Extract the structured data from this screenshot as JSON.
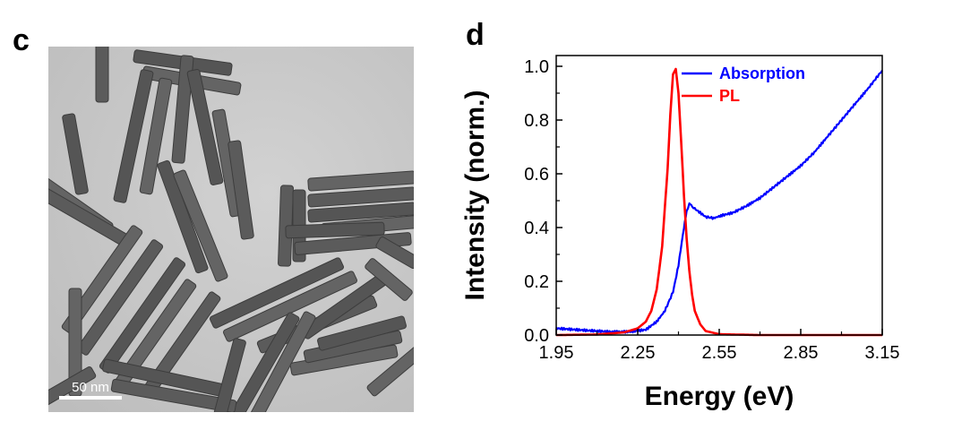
{
  "panels": {
    "left_letter": "c",
    "right_letter": "d"
  },
  "tem": {
    "scale_bar_label": "50 nm"
  },
  "chart_data": {
    "type": "line",
    "xlabel": "Energy (eV)",
    "ylabel": "Intensity (norm.)",
    "xlim": [
      1.95,
      3.15
    ],
    "ylim": [
      0.0,
      1.04
    ],
    "xticks": [
      "1.95",
      "2.25",
      "2.55",
      "2.85",
      "3.15"
    ],
    "yticks": [
      "0.0",
      "0.2",
      "0.4",
      "0.6",
      "0.8",
      "1.0"
    ],
    "legend_position": "top-right",
    "series": [
      {
        "name": "Absorption",
        "color": "#0000ff",
        "x": [
          1.95,
          2.05,
          2.15,
          2.22,
          2.28,
          2.32,
          2.35,
          2.38,
          2.4,
          2.42,
          2.43,
          2.44,
          2.45,
          2.46,
          2.48,
          2.5,
          2.53,
          2.56,
          2.6,
          2.65,
          2.7,
          2.75,
          2.8,
          2.85,
          2.9,
          2.95,
          3.0,
          3.05,
          3.1,
          3.15
        ],
        "y": [
          0.025,
          0.018,
          0.012,
          0.012,
          0.02,
          0.05,
          0.09,
          0.16,
          0.26,
          0.4,
          0.46,
          0.49,
          0.48,
          0.47,
          0.455,
          0.44,
          0.435,
          0.445,
          0.455,
          0.48,
          0.51,
          0.55,
          0.59,
          0.63,
          0.68,
          0.74,
          0.8,
          0.86,
          0.92,
          0.985
        ]
      },
      {
        "name": "PL",
        "color": "#ff0000",
        "x": [
          1.95,
          2.1,
          2.2,
          2.25,
          2.28,
          2.3,
          2.32,
          2.34,
          2.36,
          2.37,
          2.38,
          2.39,
          2.4,
          2.41,
          2.42,
          2.43,
          2.44,
          2.45,
          2.46,
          2.48,
          2.5,
          2.55,
          2.7,
          3.15
        ],
        "y": [
          0.0,
          0.002,
          0.01,
          0.025,
          0.05,
          0.09,
          0.17,
          0.33,
          0.62,
          0.82,
          0.97,
          0.99,
          0.9,
          0.72,
          0.52,
          0.36,
          0.24,
          0.15,
          0.09,
          0.04,
          0.015,
          0.003,
          0.0,
          0.0
        ]
      }
    ]
  }
}
